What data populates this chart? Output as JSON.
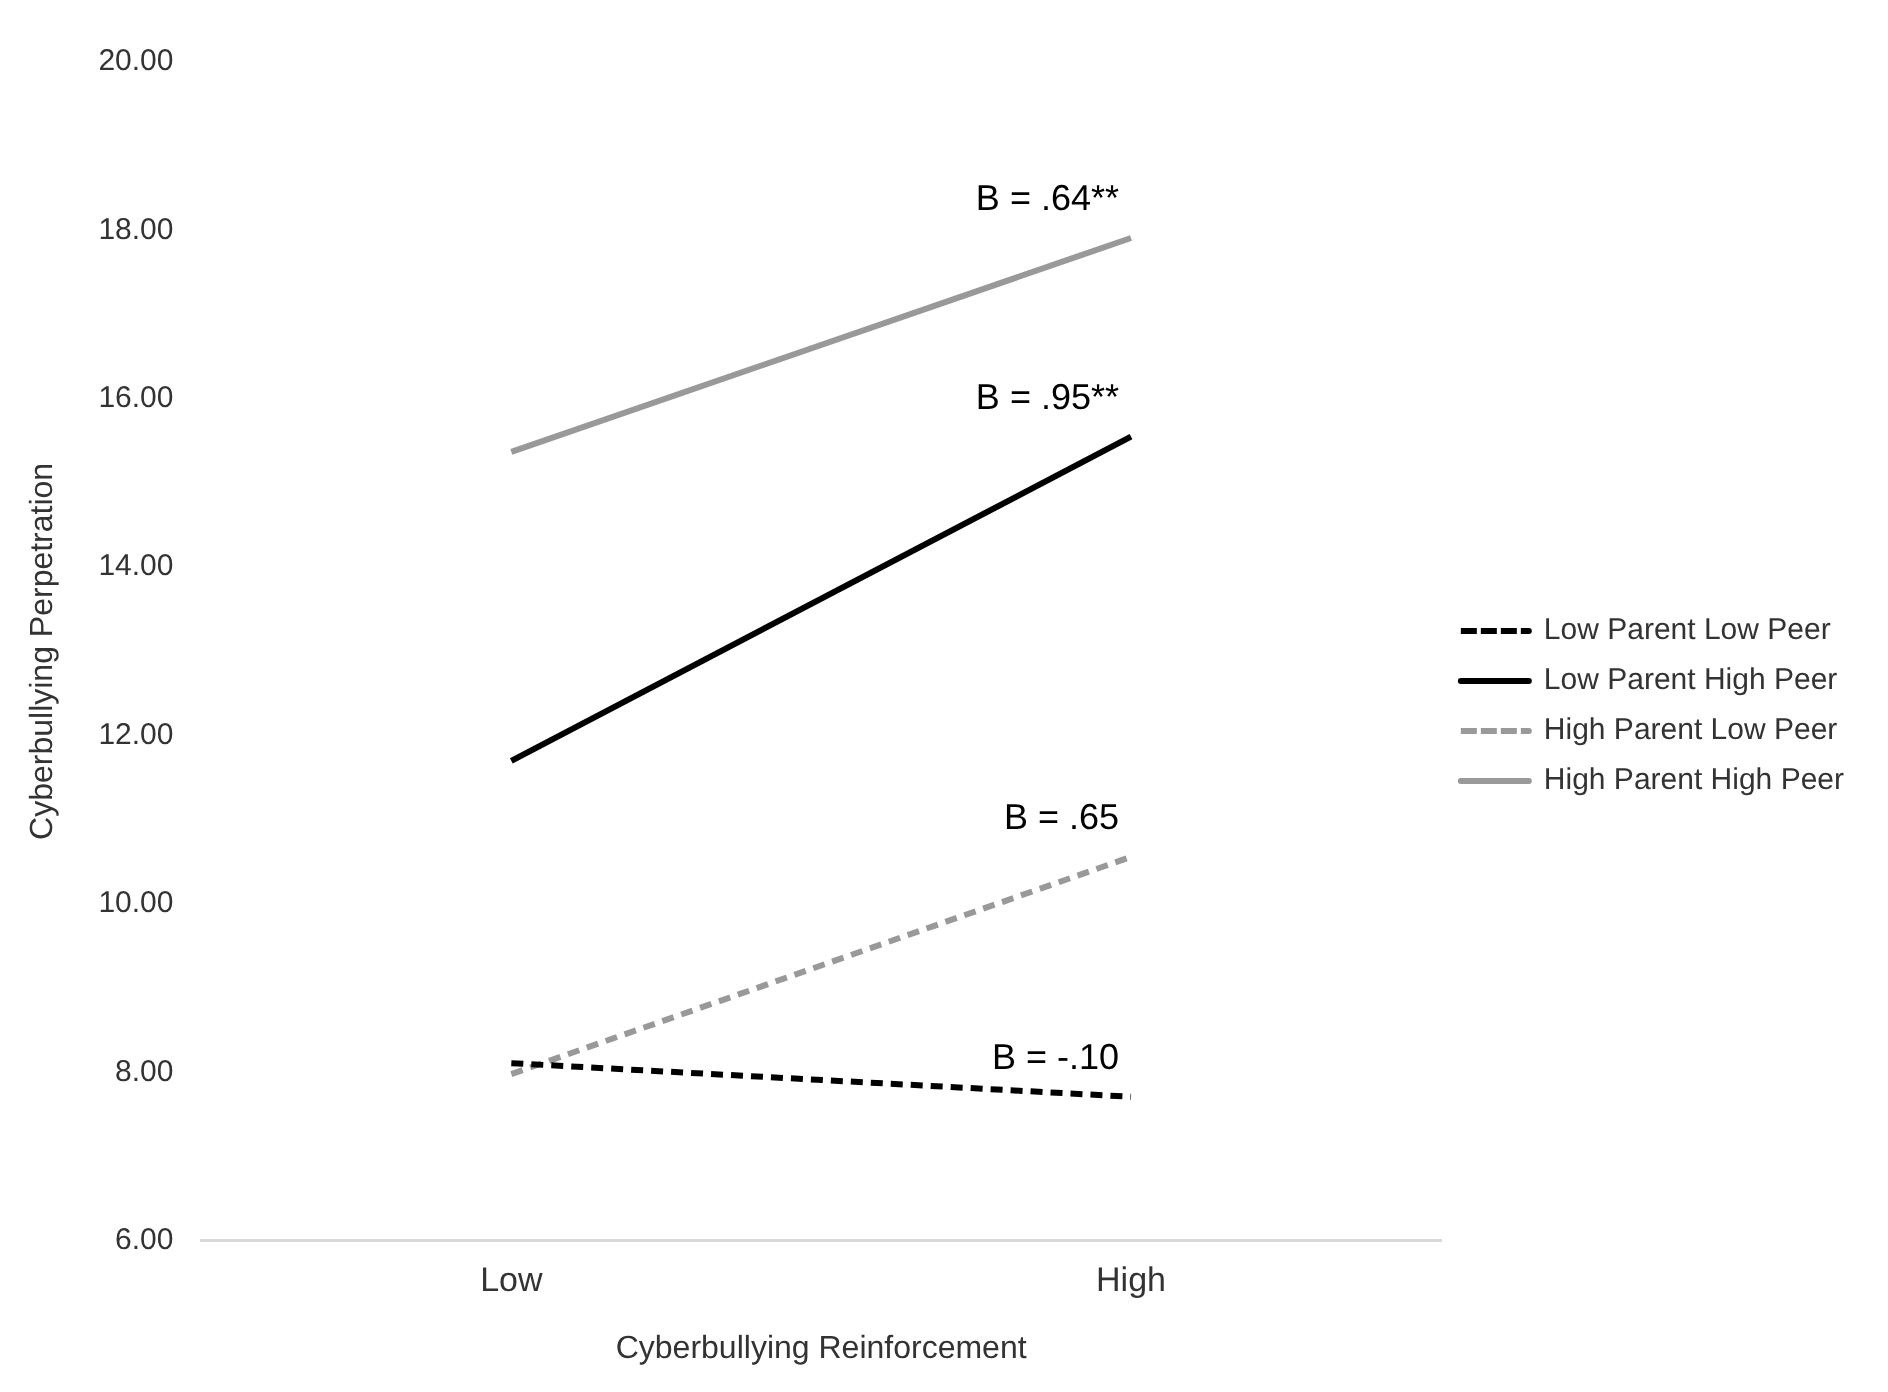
{
  "chart_data": {
    "type": "line",
    "xlabel": "Cyberbullying Reinforcement",
    "ylabel": "Cyberbullying Perpetration",
    "categories": [
      "Low",
      "High"
    ],
    "series": [
      {
        "name": "Low Parent Low Peer",
        "color": "#000000",
        "line_style": "dashed",
        "values": [
          8.11,
          7.71
        ]
      },
      {
        "name": "Low Parent High Peer",
        "color": "#000000",
        "line_style": "solid",
        "values": [
          11.7,
          15.55
        ]
      },
      {
        "name": "High Parent Low Peer",
        "color": "#999999",
        "line_style": "dashed",
        "values": [
          7.98,
          10.56
        ]
      },
      {
        "name": "High Parent High Peer",
        "color": "#999999",
        "line_style": "solid",
        "values": [
          15.37,
          17.91
        ]
      }
    ],
    "ylim": [
      6,
      20
    ],
    "yticks": [
      {
        "value": 6,
        "label": "6.00"
      },
      {
        "value": 8,
        "label": "8.00"
      },
      {
        "value": 10,
        "label": "10.00"
      },
      {
        "value": 12,
        "label": "12.00"
      },
      {
        "value": 14,
        "label": "14.00"
      },
      {
        "value": 16,
        "label": "16.00"
      },
      {
        "value": 18,
        "label": "18.00"
      },
      {
        "value": 20,
        "label": "20.00"
      }
    ],
    "annotations": [
      {
        "text": "B = -.10",
        "x": "High",
        "y": 7.71
      },
      {
        "text": "B = .95**",
        "x": "High",
        "y": 15.55
      },
      {
        "text": "B = .65",
        "x": "High",
        "y": 10.56
      },
      {
        "text": "B = .64**",
        "x": "High",
        "y": 17.91
      }
    ],
    "legend": "right",
    "grid": false,
    "marker": "none"
  }
}
